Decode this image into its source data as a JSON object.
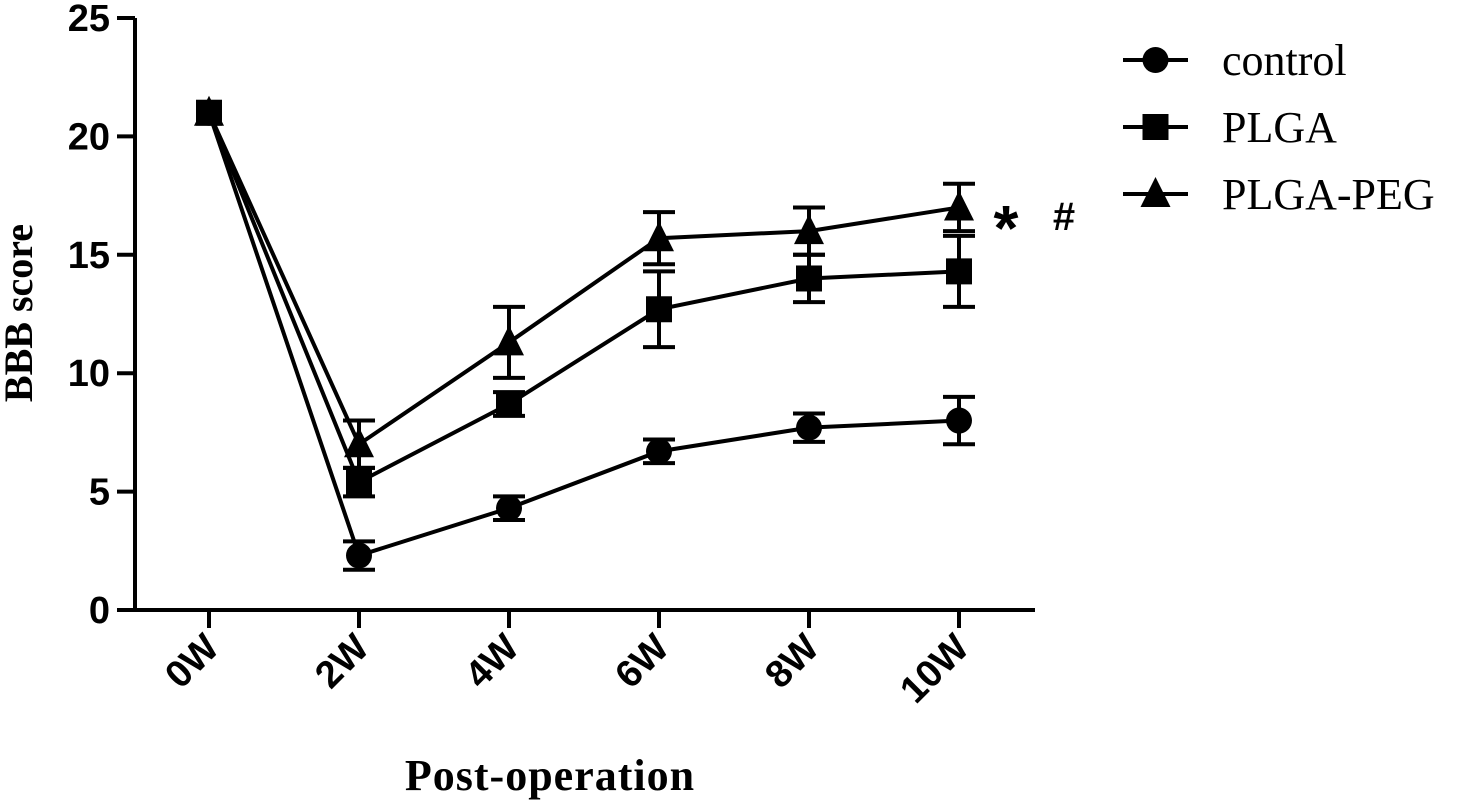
{
  "chart_data": {
    "type": "line",
    "title": "",
    "xlabel": "Post-operation",
    "ylabel": "BBB score",
    "categories": [
      "0W",
      "2W",
      "4W",
      "6W",
      "8W",
      "10W"
    ],
    "ylim": [
      0,
      25
    ],
    "yticks": [
      "0",
      "5",
      "10",
      "15",
      "20",
      "25"
    ],
    "grid": false,
    "legend_position": "top-right",
    "series": [
      {
        "name": "control",
        "marker": "circle",
        "values": [
          21,
          2.3,
          4.3,
          6.7,
          7.7,
          8.0
        ],
        "errors": [
          0,
          0.6,
          0.5,
          0.5,
          0.6,
          1.0
        ]
      },
      {
        "name": "PLGA",
        "marker": "square",
        "values": [
          21,
          5.4,
          8.7,
          12.7,
          14.0,
          14.3
        ],
        "errors": [
          0,
          0.6,
          0.5,
          1.6,
          1.0,
          1.5
        ]
      },
      {
        "name": "PLGA-PEG",
        "marker": "triangle",
        "values": [
          21,
          7.0,
          11.3,
          15.7,
          16.0,
          17.0
        ],
        "errors": [
          0,
          1.0,
          1.5,
          1.1,
          1.0,
          1.0
        ]
      }
    ],
    "annotations": {
      "star": "*",
      "hash": "#"
    },
    "colors": {
      "line": "#000000",
      "background": "#ffffff"
    }
  }
}
